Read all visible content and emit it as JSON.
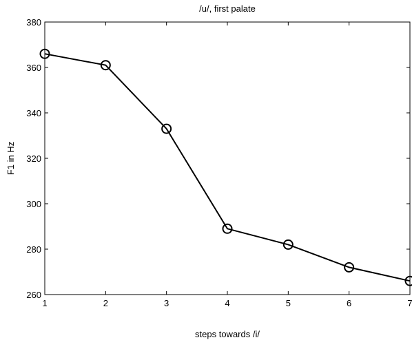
{
  "chart_data": {
    "type": "line",
    "title": "/u/, first palate",
    "xlabel": "steps towards /i/",
    "ylabel": "F1 in Hz",
    "xlim": [
      1,
      7
    ],
    "ylim": [
      260,
      380
    ],
    "xticks": [
      1,
      2,
      3,
      4,
      5,
      6,
      7
    ],
    "yticks": [
      260,
      280,
      300,
      320,
      340,
      360,
      380
    ],
    "grid": false,
    "marker": "circle",
    "line_color": "#000000",
    "series": [
      {
        "x": [
          1,
          2,
          3,
          4,
          5,
          6,
          7
        ],
        "values": [
          366,
          361,
          333,
          289,
          282,
          272,
          266
        ]
      }
    ]
  }
}
